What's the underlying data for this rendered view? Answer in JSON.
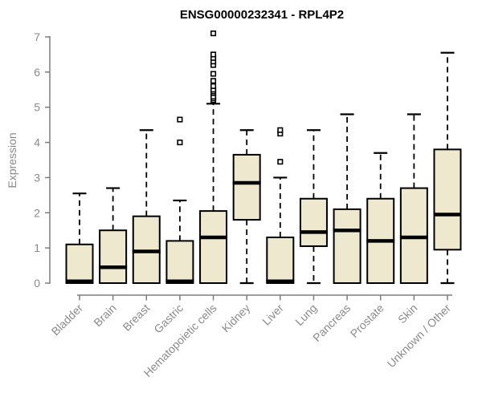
{
  "chart_data": {
    "type": "boxplot",
    "title": "ENSG00000232341 - RPL4P2",
    "ylabel": "Expression",
    "xlabel": "",
    "ylim": [
      0,
      7
    ],
    "yticks": [
      0,
      1,
      2,
      3,
      4,
      5,
      6,
      7
    ],
    "grid": false,
    "legend": "none",
    "box_fill": "#EDE8CE",
    "box_border": "#000000",
    "axis_color": "#7d7d7d",
    "label_color": "#8a8a8a",
    "title_color": "#000000",
    "categories": [
      "Bladder",
      "Brain",
      "Breast",
      "Gastric",
      "Hematopoietic cells",
      "Kidney",
      "Liver",
      "Lung",
      "Pancreas",
      "Prostate",
      "Skin",
      "Unknown / Other"
    ],
    "series": [
      {
        "category": "Bladder",
        "low": 0,
        "q1": 0,
        "median": 0.05,
        "q3": 1.1,
        "high": 2.55,
        "outliers": []
      },
      {
        "category": "Brain",
        "low": 0,
        "q1": 0,
        "median": 0.45,
        "q3": 1.5,
        "high": 2.7,
        "outliers": []
      },
      {
        "category": "Breast",
        "low": 0,
        "q1": 0,
        "median": 0.9,
        "q3": 1.9,
        "high": 4.35,
        "outliers": []
      },
      {
        "category": "Gastric",
        "low": 0,
        "q1": 0,
        "median": 0.05,
        "q3": 1.2,
        "high": 2.35,
        "outliers": [
          4.0,
          4.65
        ]
      },
      {
        "category": "Hematopoietic cells",
        "low": 0,
        "q1": 0,
        "median": 1.3,
        "q3": 2.05,
        "high": 5.1,
        "outliers": [
          5.2,
          5.25,
          5.3,
          5.4,
          5.45,
          5.5,
          5.6,
          5.75,
          5.95,
          6.2,
          6.3,
          6.4,
          6.5,
          7.1
        ]
      },
      {
        "category": "Kidney",
        "low": 0,
        "q1": 1.8,
        "median": 2.85,
        "q3": 3.65,
        "high": 4.35,
        "outliers": []
      },
      {
        "category": "Liver",
        "low": 0,
        "q1": 0,
        "median": 0.05,
        "q3": 1.3,
        "high": 3.0,
        "outliers": [
          3.45,
          4.25,
          4.35
        ]
      },
      {
        "category": "Lung",
        "low": 0,
        "q1": 1.05,
        "median": 1.45,
        "q3": 2.4,
        "high": 4.35,
        "outliers": []
      },
      {
        "category": "Pancreas",
        "low": 0,
        "q1": 0,
        "median": 1.5,
        "q3": 2.1,
        "high": 4.8,
        "outliers": []
      },
      {
        "category": "Prostate",
        "low": 0,
        "q1": 0,
        "median": 1.2,
        "q3": 2.4,
        "high": 3.7,
        "outliers": []
      },
      {
        "category": "Skin",
        "low": 0,
        "q1": 0,
        "median": 1.3,
        "q3": 2.7,
        "high": 4.8,
        "outliers": []
      },
      {
        "category": "Unknown / Other",
        "low": 0,
        "q1": 0.95,
        "median": 1.95,
        "q3": 3.8,
        "high": 6.55,
        "outliers": []
      }
    ]
  }
}
